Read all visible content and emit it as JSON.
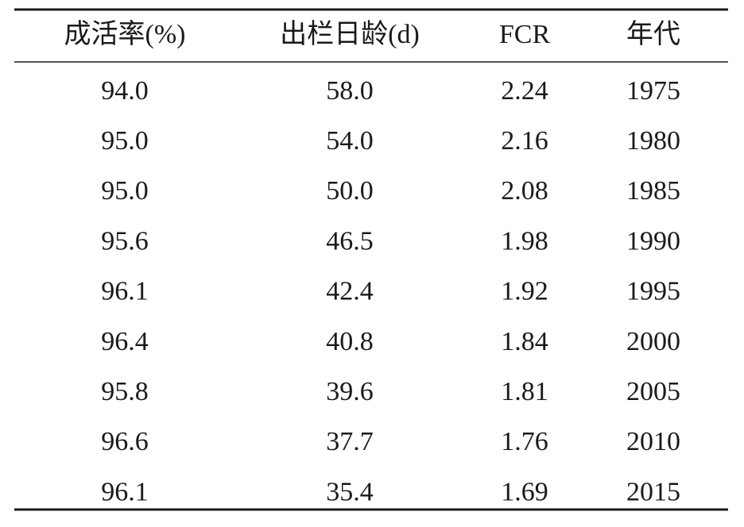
{
  "table": {
    "header": [
      "成活率(%)",
      "出栏日龄(d)",
      "FCR",
      "年代"
    ],
    "rows": [
      [
        "94.0",
        "58.0",
        "2.24",
        "1975"
      ],
      [
        "95.0",
        "54.0",
        "2.16",
        "1980"
      ],
      [
        "95.0",
        "50.0",
        "2.08",
        "1985"
      ],
      [
        "95.6",
        "46.5",
        "1.98",
        "1990"
      ],
      [
        "96.1",
        "42.4",
        "1.92",
        "1995"
      ],
      [
        "96.4",
        "40.8",
        "1.84",
        "2000"
      ],
      [
        "95.8",
        "39.6",
        "1.81",
        "2005"
      ],
      [
        "96.6",
        "37.7",
        "1.76",
        "2010"
      ],
      [
        "96.1",
        "35.4",
        "1.69",
        "2015"
      ]
    ]
  }
}
